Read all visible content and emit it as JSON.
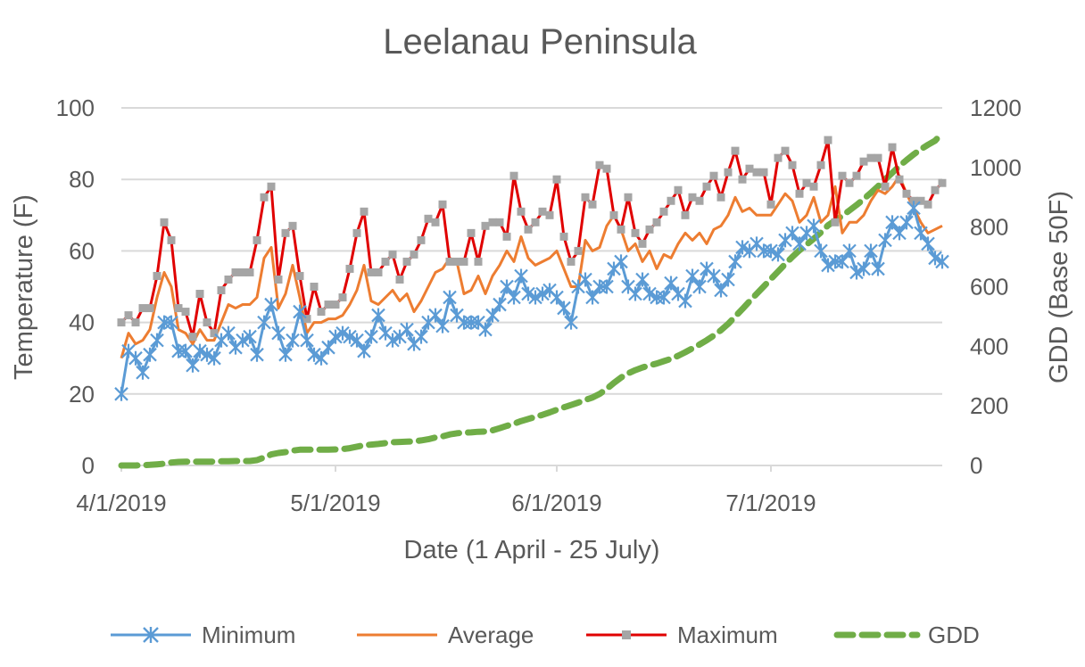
{
  "chart_data": {
    "type": "line",
    "title": "Leelanau Peninsula",
    "xlabel": "Date (1 April - 25 July)",
    "ylabel": "Temperature (F)",
    "y2label": "GDD (Base 50F)",
    "x_start": "4/1/2019",
    "x_ticks": [
      "4/1/2019",
      "5/1/2019",
      "6/1/2019",
      "7/1/2019"
    ],
    "ylim": [
      0,
      100
    ],
    "y_ticks": [
      "0",
      "20",
      "40",
      "60",
      "80",
      "100"
    ],
    "y2lim": [
      0,
      1200
    ],
    "y2_ticks": [
      "0",
      "200",
      "400",
      "600",
      "800",
      "1000",
      "1200"
    ],
    "grid": true,
    "legend_position": "bottom",
    "series": [
      {
        "name": "Minimum",
        "color": "#5B9BD5",
        "axis": "left",
        "marker": "asterisk",
        "style": "solid",
        "values": [
          20,
          32,
          30,
          26,
          31,
          35,
          40,
          40,
          32,
          32,
          28,
          32,
          31,
          30,
          35,
          37,
          33,
          35,
          36,
          31,
          40,
          45,
          37,
          31,
          35,
          43,
          35,
          31,
          30,
          33,
          36,
          37,
          36,
          35,
          32,
          36,
          42,
          37,
          35,
          36,
          38,
          34,
          36,
          40,
          42,
          39,
          47,
          42,
          40,
          40,
          40,
          38,
          42,
          45,
          50,
          47,
          53,
          48,
          47,
          48,
          49,
          47,
          44,
          40,
          50,
          52,
          47,
          50,
          50,
          55,
          57,
          50,
          48,
          52,
          48,
          47,
          47,
          51,
          48,
          46,
          53,
          50,
          55,
          53,
          49,
          52,
          57,
          61,
          60,
          62,
          60,
          60,
          59,
          63,
          65,
          62,
          65,
          67,
          60,
          56,
          57,
          57,
          60,
          54,
          55,
          60,
          55,
          63,
          68,
          65,
          68,
          72,
          65,
          62,
          58,
          57
        ]
      },
      {
        "name": "Average",
        "color": "#ED7D31",
        "axis": "left",
        "marker": "none",
        "style": "solid",
        "values": [
          30,
          37,
          34,
          35,
          38,
          47,
          54,
          50,
          38,
          37,
          34,
          38,
          35,
          35,
          40,
          45,
          44,
          45,
          45,
          47,
          58,
          61,
          44,
          48,
          56,
          47,
          37,
          40,
          40,
          41,
          41,
          42,
          45,
          49,
          56,
          46,
          45,
          47,
          49,
          46,
          48,
          43,
          46,
          50,
          54,
          55,
          58,
          57,
          48,
          49,
          53,
          48,
          53,
          56,
          60,
          57,
          64,
          58,
          56,
          57,
          58,
          60,
          55,
          50,
          50,
          63,
          60,
          61,
          67,
          70,
          66,
          60,
          62,
          57,
          60,
          55,
          59,
          58,
          62,
          65,
          63,
          65,
          62,
          66,
          67,
          70,
          75,
          71,
          72,
          70,
          70,
          70,
          73,
          76,
          74,
          68,
          70,
          75,
          68,
          70,
          78,
          65,
          68,
          68,
          70,
          74,
          77,
          76,
          78,
          81,
          76,
          72,
          68,
          65,
          66,
          67
        ]
      },
      {
        "name": "Maximum",
        "color": "#E00000",
        "axis": "left",
        "marker": "square",
        "marker_color": "#A5A5A5",
        "style": "solid",
        "values": [
          40,
          42,
          40,
          44,
          44,
          53,
          68,
          63,
          44,
          43,
          36,
          48,
          40,
          37,
          49,
          52,
          54,
          54,
          54,
          63,
          75,
          78,
          52,
          65,
          67,
          53,
          41,
          50,
          43,
          45,
          45,
          47,
          55,
          65,
          71,
          54,
          54,
          57,
          59,
          52,
          57,
          59,
          63,
          69,
          68,
          73,
          57,
          57,
          57,
          65,
          57,
          67,
          68,
          68,
          64,
          81,
          71,
          66,
          68,
          71,
          70,
          80,
          64,
          57,
          60,
          75,
          73,
          84,
          83,
          70,
          66,
          75,
          65,
          62,
          66,
          68,
          71,
          74,
          77,
          70,
          75,
          74,
          78,
          81,
          75,
          82,
          88,
          80,
          83,
          82,
          82,
          73,
          86,
          88,
          84,
          76,
          79,
          78,
          84,
          91,
          68,
          81,
          79,
          81,
          85,
          86,
          86,
          78,
          89,
          80,
          76,
          74,
          74,
          73,
          77,
          79
        ]
      },
      {
        "name": "GDD",
        "color": "#70AD47",
        "axis": "right",
        "marker": "none",
        "style": "dashed",
        "values": [
          0,
          0,
          0,
          1,
          2,
          4,
          6,
          10,
          12,
          13,
          13,
          13,
          13,
          13,
          14,
          14,
          15,
          15,
          15,
          18,
          27,
          37,
          42,
          45,
          50,
          53,
          53,
          53,
          53,
          53,
          54,
          55,
          58,
          63,
          68,
          70,
          72,
          75,
          78,
          79,
          80,
          81,
          84,
          88,
          94,
          98,
          104,
          108,
          110,
          111,
          113,
          114,
          118,
          125,
          133,
          140,
          149,
          156,
          163,
          170,
          178,
          187,
          195,
          203,
          211,
          220,
          228,
          240,
          257,
          277,
          295,
          309,
          320,
          329,
          336,
          342,
          350,
          358,
          368,
          380,
          393,
          406,
          420,
          436,
          454,
          475,
          500,
          525,
          551,
          576,
          601,
          626,
          651,
          676,
          700,
          722,
          741,
          761,
          782,
          806,
          822,
          838,
          856,
          874,
          894,
          915,
          937,
          960,
          982,
          1005,
          1025,
          1044,
          1061,
          1076,
          1090,
          1115
        ]
      }
    ]
  }
}
